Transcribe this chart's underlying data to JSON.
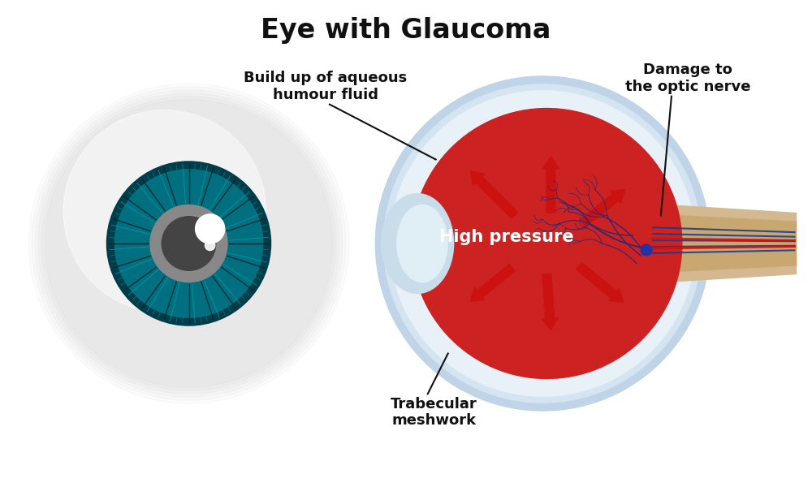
{
  "title": "Eye with Glaucoma",
  "title_fontsize": 24,
  "title_fontweight": "bold",
  "bg_color": "#ffffff",
  "label_aqueous": "Build up of aqueous\nhumour fluid",
  "label_trabecular": "Trabecular\nmeshwork",
  "label_damage": "Damage to\nthe optic nerve",
  "label_pressure": "High pressure",
  "annotation_fontsize": 13,
  "annotation_fontweight": "bold",
  "pressure_fontsize": 15,
  "pressure_text_color": "#ffffff",
  "iris_color_outer": "#003d4a",
  "iris_color_inner": "#007a8a",
  "teal_mid": "#006878",
  "pupil_color": "#888888",
  "red_interior": "#cc2222",
  "sclera_outer": "#c0d4e8",
  "sclera_mid": "#d4e4f0",
  "sclera_inner": "#e8f0f8",
  "optic_nerve_bg": "#d4b890",
  "optic_nerve_beige": "#c8a870",
  "cornea_color": "#c8dcea",
  "cornea_inner": "#e0eef6",
  "arrow_red": "#cc1111",
  "nerve_blue": "#1a3a8a",
  "nerve_red": "#cc1111"
}
